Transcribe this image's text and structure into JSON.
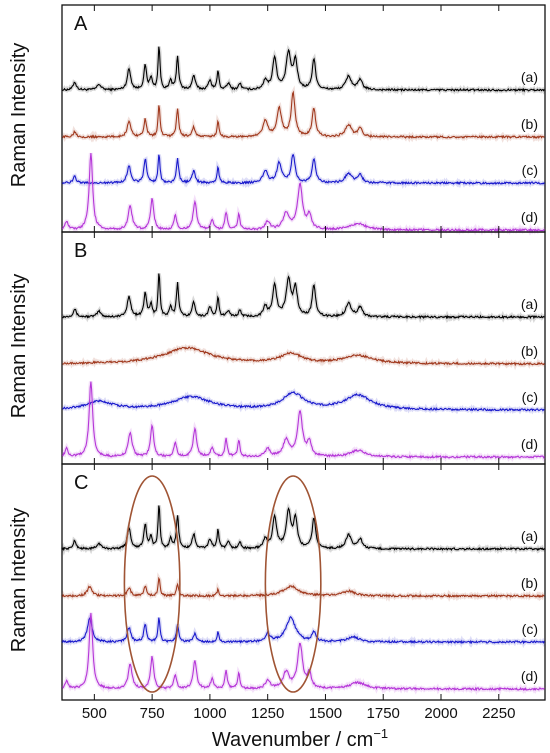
{
  "chart_data": {
    "type": "line",
    "xlabel": "Wavenumber / cm",
    "xlabel_sup": "−1",
    "ylabel": "Raman Intensity",
    "xlim": [
      360,
      2450
    ],
    "xticks": [
      500,
      750,
      1000,
      1250,
      1500,
      1750,
      2000,
      2250
    ],
    "colors": {
      "a": "#000000",
      "b": "#a0391e",
      "c": "#1a1acc",
      "d": "#b536d8"
    },
    "panels": [
      {
        "letter": "A",
        "series": [
          {
            "label": "(a)",
            "color_key": "a",
            "baseline": 0.92,
            "peaks": [
              [
                415,
                0.1,
                8
              ],
              [
                520,
                0.07,
                10
              ],
              [
                650,
                0.26,
                9
              ],
              [
                720,
                0.3,
                7
              ],
              [
                745,
                0.15,
                6
              ],
              [
                780,
                0.55,
                5
              ],
              [
                830,
                0.12,
                6
              ],
              [
                860,
                0.42,
                6
              ],
              [
                930,
                0.18,
                8
              ],
              [
                1000,
                0.12,
                8
              ],
              [
                1035,
                0.24,
                5
              ],
              [
                1080,
                0.08,
                8
              ],
              [
                1130,
                0.08,
                7
              ],
              [
                1240,
                0.12,
                10
              ],
              [
                1280,
                0.4,
                10
              ],
              [
                1340,
                0.45,
                12
              ],
              [
                1370,
                0.35,
                10
              ],
              [
                1450,
                0.38,
                9
              ],
              [
                1600,
                0.17,
                14
              ],
              [
                1650,
                0.12,
                12
              ]
            ]
          },
          {
            "label": "(b)",
            "color_key": "b",
            "baseline": 0.92,
            "peaks": [
              [
                415,
                0.07,
                8
              ],
              [
                650,
                0.2,
                9
              ],
              [
                720,
                0.22,
                7
              ],
              [
                780,
                0.4,
                5
              ],
              [
                860,
                0.35,
                6
              ],
              [
                930,
                0.12,
                8
              ],
              [
                1035,
                0.2,
                5
              ],
              [
                1240,
                0.2,
                12
              ],
              [
                1300,
                0.35,
                12
              ],
              [
                1360,
                0.55,
                10
              ],
              [
                1450,
                0.35,
                9
              ],
              [
                1600,
                0.15,
                16
              ],
              [
                1650,
                0.1,
                12
              ]
            ]
          },
          {
            "label": "(c)",
            "color_key": "c",
            "baseline": 0.92,
            "peaks": [
              [
                415,
                0.08,
                8
              ],
              [
                650,
                0.22,
                9
              ],
              [
                720,
                0.3,
                7
              ],
              [
                780,
                0.35,
                5
              ],
              [
                860,
                0.3,
                6
              ],
              [
                930,
                0.15,
                8
              ],
              [
                1035,
                0.2,
                5
              ],
              [
                1240,
                0.15,
                12
              ],
              [
                1300,
                0.25,
                12
              ],
              [
                1360,
                0.35,
                10
              ],
              [
                1450,
                0.3,
                9
              ],
              [
                1600,
                0.12,
                16
              ],
              [
                1650,
                0.1,
                12
              ]
            ]
          },
          {
            "label": "(d)",
            "color_key": "d",
            "baseline": 0.92,
            "peaks": [
              [
                380,
                0.1,
                8
              ],
              [
                485,
                0.95,
                9
              ],
              [
                655,
                0.3,
                10
              ],
              [
                750,
                0.4,
                8
              ],
              [
                850,
                0.18,
                7
              ],
              [
                935,
                0.35,
                9
              ],
              [
                1010,
                0.12,
                8
              ],
              [
                1070,
                0.22,
                6
              ],
              [
                1125,
                0.2,
                6
              ],
              [
                1250,
                0.1,
                12
              ],
              [
                1330,
                0.2,
                16
              ],
              [
                1390,
                0.55,
                13
              ],
              [
                1430,
                0.18,
                10
              ],
              [
                1640,
                0.08,
                40
              ]
            ]
          }
        ]
      },
      {
        "letter": "B",
        "series": [
          {
            "label": "(a)",
            "color_key": "a",
            "baseline": 0.92,
            "peaks": [
              [
                415,
                0.1,
                8
              ],
              [
                520,
                0.07,
                10
              ],
              [
                650,
                0.26,
                9
              ],
              [
                720,
                0.3,
                7
              ],
              [
                745,
                0.15,
                6
              ],
              [
                780,
                0.55,
                5
              ],
              [
                830,
                0.12,
                6
              ],
              [
                860,
                0.42,
                6
              ],
              [
                930,
                0.18,
                8
              ],
              [
                1000,
                0.12,
                8
              ],
              [
                1035,
                0.24,
                5
              ],
              [
                1080,
                0.08,
                8
              ],
              [
                1130,
                0.08,
                7
              ],
              [
                1240,
                0.12,
                10
              ],
              [
                1280,
                0.4,
                10
              ],
              [
                1340,
                0.45,
                12
              ],
              [
                1370,
                0.35,
                10
              ],
              [
                1450,
                0.38,
                9
              ],
              [
                1600,
                0.17,
                14
              ],
              [
                1650,
                0.12,
                12
              ]
            ]
          },
          {
            "label": "(b)",
            "color_key": "b",
            "baseline": 0.92,
            "peaks": [
              [
                900,
                0.2,
                120
              ],
              [
                1350,
                0.12,
                55
              ],
              [
                1640,
                0.1,
                75
              ]
            ]
          },
          {
            "label": "(c)",
            "color_key": "c",
            "baseline": 0.92,
            "peaks": [
              [
                520,
                0.1,
                70
              ],
              [
                920,
                0.16,
                100
              ],
              [
                1360,
                0.2,
                55
              ],
              [
                1640,
                0.18,
                70
              ]
            ]
          },
          {
            "label": "(d)",
            "color_key": "d",
            "baseline": 0.92,
            "peaks": [
              [
                380,
                0.1,
                8
              ],
              [
                485,
                0.95,
                9
              ],
              [
                655,
                0.3,
                10
              ],
              [
                750,
                0.4,
                8
              ],
              [
                850,
                0.18,
                7
              ],
              [
                935,
                0.35,
                9
              ],
              [
                1010,
                0.12,
                8
              ],
              [
                1070,
                0.22,
                6
              ],
              [
                1125,
                0.2,
                6
              ],
              [
                1250,
                0.1,
                12
              ],
              [
                1330,
                0.2,
                16
              ],
              [
                1390,
                0.55,
                13
              ],
              [
                1430,
                0.18,
                10
              ],
              [
                1640,
                0.08,
                40
              ]
            ]
          }
        ]
      },
      {
        "letter": "C",
        "series": [
          {
            "label": "(a)",
            "color_key": "a",
            "baseline": 0.92,
            "peaks": [
              [
                415,
                0.1,
                8
              ],
              [
                520,
                0.07,
                10
              ],
              [
                650,
                0.26,
                9
              ],
              [
                720,
                0.3,
                7
              ],
              [
                745,
                0.15,
                6
              ],
              [
                780,
                0.55,
                5
              ],
              [
                830,
                0.12,
                6
              ],
              [
                860,
                0.42,
                6
              ],
              [
                930,
                0.18,
                8
              ],
              [
                1000,
                0.12,
                8
              ],
              [
                1035,
                0.24,
                5
              ],
              [
                1080,
                0.08,
                8
              ],
              [
                1130,
                0.08,
                7
              ],
              [
                1240,
                0.12,
                10
              ],
              [
                1280,
                0.4,
                10
              ],
              [
                1340,
                0.45,
                12
              ],
              [
                1370,
                0.35,
                10
              ],
              [
                1450,
                0.38,
                9
              ],
              [
                1600,
                0.17,
                14
              ],
              [
                1650,
                0.12,
                12
              ]
            ]
          },
          {
            "label": "(b)",
            "color_key": "b",
            "baseline": 0.92,
            "peaks": [
              [
                480,
                0.12,
                12
              ],
              [
                650,
                0.1,
                9
              ],
              [
                720,
                0.12,
                7
              ],
              [
                780,
                0.22,
                5
              ],
              [
                860,
                0.15,
                6
              ],
              [
                1035,
                0.08,
                5
              ],
              [
                1350,
                0.12,
                40
              ],
              [
                1600,
                0.06,
                30
              ]
            ]
          },
          {
            "label": "(c)",
            "color_key": "c",
            "baseline": 0.92,
            "peaks": [
              [
                480,
                0.3,
                12
              ],
              [
                650,
                0.18,
                9
              ],
              [
                720,
                0.22,
                7
              ],
              [
                780,
                0.3,
                5
              ],
              [
                860,
                0.22,
                6
              ],
              [
                935,
                0.1,
                8
              ],
              [
                1035,
                0.12,
                5
              ],
              [
                1250,
                0.1,
                12
              ],
              [
                1350,
                0.3,
                25
              ],
              [
                1450,
                0.12,
                10
              ],
              [
                1620,
                0.06,
                30
              ]
            ]
          },
          {
            "label": "(d)",
            "color_key": "d",
            "baseline": 0.92,
            "peaks": [
              [
                380,
                0.1,
                8
              ],
              [
                485,
                0.95,
                9
              ],
              [
                655,
                0.3,
                10
              ],
              [
                750,
                0.4,
                8
              ],
              [
                850,
                0.18,
                7
              ],
              [
                935,
                0.35,
                9
              ],
              [
                1010,
                0.12,
                8
              ],
              [
                1070,
                0.22,
                6
              ],
              [
                1125,
                0.2,
                6
              ],
              [
                1250,
                0.1,
                12
              ],
              [
                1330,
                0.2,
                16
              ],
              [
                1390,
                0.55,
                13
              ],
              [
                1430,
                0.18,
                10
              ],
              [
                1640,
                0.08,
                40
              ]
            ]
          }
        ],
        "highlight_ellipses": [
          {
            "center_x": 750,
            "width_cm": 240
          },
          {
            "center_x": 1360,
            "width_cm": 240
          }
        ]
      }
    ]
  }
}
